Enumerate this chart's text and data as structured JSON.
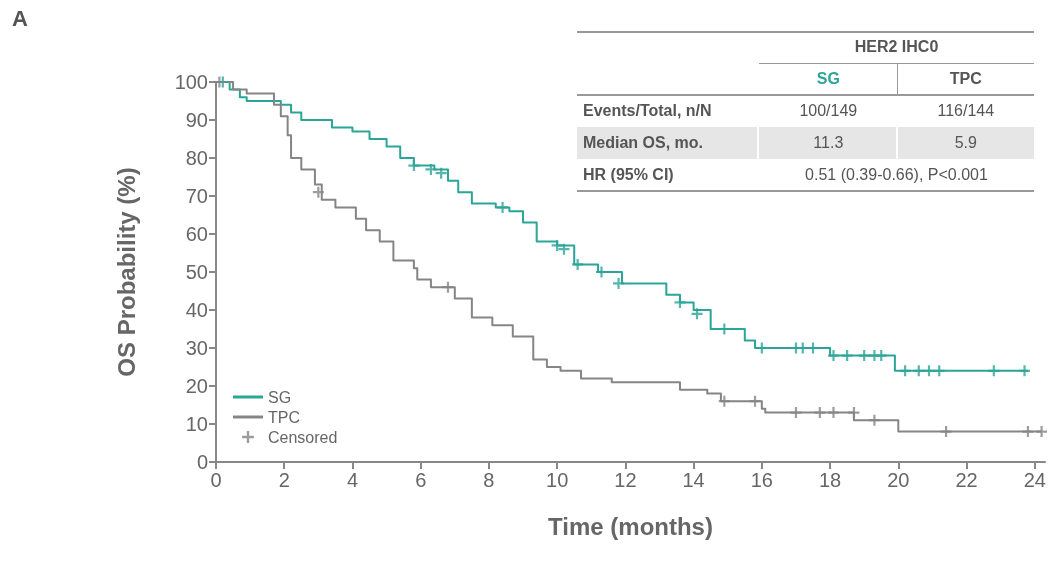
{
  "chart_data": {
    "type": "step",
    "title": "A",
    "xlabel": "Time (months)",
    "ylabel": "OS Probability (%)",
    "xlim": [
      0,
      24.3
    ],
    "xticks": [
      0,
      2,
      4,
      6,
      8,
      10,
      12,
      14,
      16,
      18,
      20,
      22,
      24
    ],
    "ylim": [
      0,
      100
    ],
    "yticks": [
      0,
      10,
      20,
      30,
      40,
      50,
      60,
      70,
      80,
      90,
      100
    ],
    "grid": false,
    "legend": "bottom left",
    "marker": "none",
    "line_style": "solid",
    "series": [
      {
        "name": "SG",
        "color": "#2aa597",
        "x": [
          0,
          0.4,
          0.7,
          0.9,
          1.4,
          1.9,
          2.2,
          2.5,
          3.0,
          3.4,
          4.0,
          4.5,
          5.0,
          5.4,
          5.8,
          6.4,
          6.8,
          7.1,
          7.5,
          8.2,
          8.6,
          9.0,
          9.4,
          10.0,
          10.5,
          11.2,
          11.9,
          12.8,
          13.2,
          13.6,
          14.0,
          14.5,
          15.1,
          15.5,
          15.8,
          18.0,
          19.9,
          23.8
        ],
        "values": [
          100,
          98,
          96,
          95,
          95,
          94,
          92,
          90,
          90,
          88,
          87,
          85,
          83,
          80,
          78,
          77,
          74,
          71,
          68,
          67,
          66,
          63,
          58,
          57,
          52,
          50,
          47,
          47,
          44,
          42,
          40,
          35,
          35,
          32,
          30,
          28,
          24,
          24
        ]
      },
      {
        "name": "TPC",
        "color": "#858585",
        "x": [
          0,
          0.5,
          0.9,
          1.5,
          1.7,
          1.9,
          2.1,
          2.2,
          2.5,
          2.9,
          3.1,
          3.5,
          4.1,
          4.4,
          4.8,
          5.2,
          5.8,
          5.9,
          6.3,
          7.0,
          7.5,
          8.1,
          8.7,
          9.3,
          9.7,
          10.1,
          10.7,
          11.6,
          13.3,
          13.6,
          14.4,
          14.8,
          16.0,
          16.1,
          18.7,
          20.0,
          24.2
        ],
        "values": [
          100,
          98,
          97,
          97,
          94,
          91,
          86,
          80,
          77,
          73,
          69,
          67,
          64,
          61,
          58,
          53,
          51,
          48,
          46,
          43,
          38,
          36,
          33,
          27,
          25,
          24,
          22,
          21,
          21,
          19,
          18,
          16,
          14,
          13,
          11,
          8,
          8
        ]
      },
      {
        "name": "Censored",
        "type": "scatter",
        "marker": "cross",
        "color": "#858585",
        "x": [
          0.2,
          5.8,
          6.3,
          6.6,
          8.4,
          10.0,
          10.2,
          10.6,
          11.3,
          11.8,
          13.6,
          14.1,
          14.9,
          16.0,
          17.0,
          17.2,
          17.5,
          18.1,
          18.5,
          19.0,
          19.3,
          19.5,
          20.2,
          20.6,
          20.9,
          21.2,
          22.8,
          23.7,
          0.1,
          3.0,
          6.8,
          14.9,
          15.8,
          17.0,
          17.7,
          18.1,
          18.7,
          19.3,
          21.4,
          23.8,
          24.2
        ],
        "values": [
          100,
          78,
          77,
          76,
          67,
          57,
          56,
          52,
          50,
          47,
          42,
          39,
          35,
          30,
          30,
          30,
          30,
          28,
          28,
          28,
          28,
          28,
          24,
          24,
          24,
          24,
          24,
          24,
          100,
          71,
          46,
          16,
          16,
          13,
          13,
          13,
          13,
          11,
          8,
          8,
          8
        ],
        "colors": [
          "#2aa597",
          "#2aa597",
          "#2aa597",
          "#2aa597",
          "#2aa597",
          "#2aa597",
          "#2aa597",
          "#2aa597",
          "#2aa597",
          "#2aa597",
          "#2aa597",
          "#2aa597",
          "#2aa597",
          "#2aa597",
          "#2aa597",
          "#2aa597",
          "#2aa597",
          "#2aa597",
          "#2aa597",
          "#2aa597",
          "#2aa597",
          "#2aa597",
          "#2aa597",
          "#2aa597",
          "#2aa597",
          "#2aa597",
          "#2aa597",
          "#2aa597",
          "#858585",
          "#858585",
          "#858585",
          "#858585",
          "#858585",
          "#858585",
          "#858585",
          "#858585",
          "#858585",
          "#858585",
          "#858585",
          "#858585",
          "#858585"
        ]
      }
    ],
    "annotations": [
      "HER2 IHC0",
      "SG",
      "TPC",
      "Events/Total, n/N",
      "100/149",
      "116/144",
      "Median OS, mo.",
      "11.3",
      "5.9",
      "HR (95% CI)",
      "0.51 (0.39-0.66), P<0.001"
    ]
  }
}
